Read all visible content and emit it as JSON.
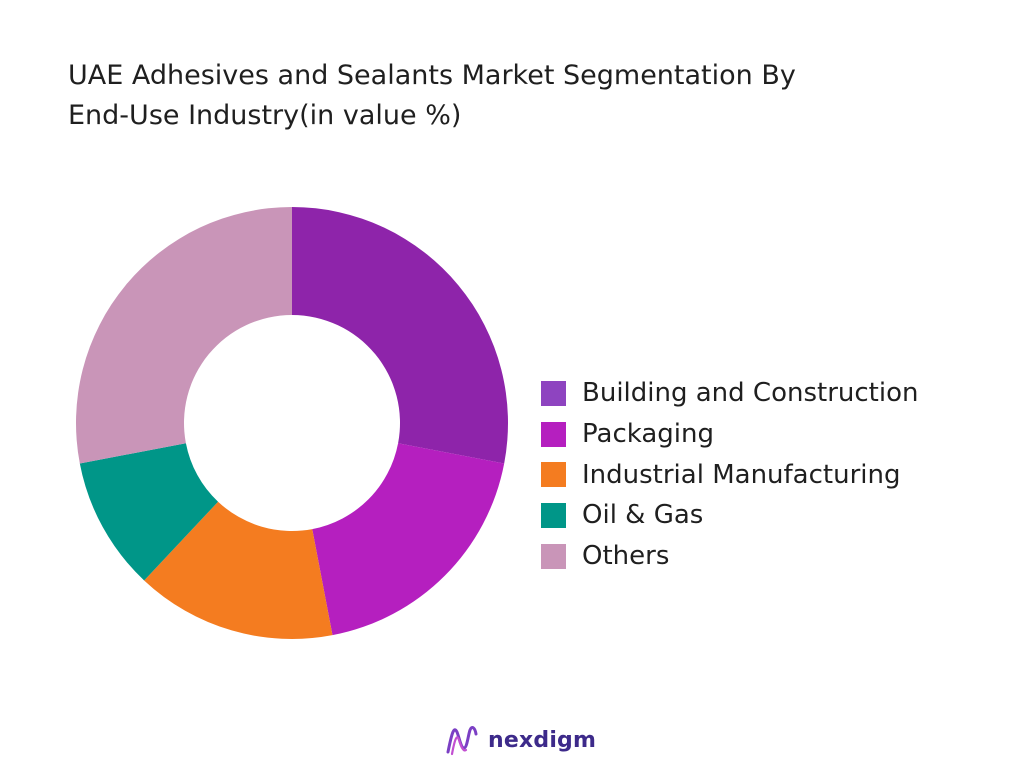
{
  "chart_data": {
    "type": "pie",
    "donut": true,
    "title": "UAE Adhesives and Sealants Market Segmentation By End-Use Industry(in value %)",
    "categories": [
      "Building and Construction",
      "Packaging",
      "Industrial Manufacturing",
      "Oil & Gas",
      "Others"
    ],
    "values": [
      28,
      19,
      15,
      10,
      28
    ],
    "colors": [
      "#8e24aa",
      "#b51fbf",
      "#f47c20",
      "#009688",
      "#c995b8"
    ],
    "start_angle_deg": 0,
    "legend_position": "right"
  },
  "title_lines": [
    "UAE Adhesives and Sealants Market Segmentation By",
    "End-Use Industry(in value %)"
  ],
  "legend": [
    {
      "label": "Building and Construction",
      "color": "#8e44c0"
    },
    {
      "label": "Packaging",
      "color": "#b51fbf"
    },
    {
      "label": "Industrial Manufacturing",
      "color": "#f47c20"
    },
    {
      "label": "Oil & Gas",
      "color": "#009688"
    },
    {
      "label": "Others",
      "color": "#c995b8"
    }
  ],
  "brand": {
    "name": "nexdigm",
    "logo_icon": "nexdigm-logo-icon"
  }
}
